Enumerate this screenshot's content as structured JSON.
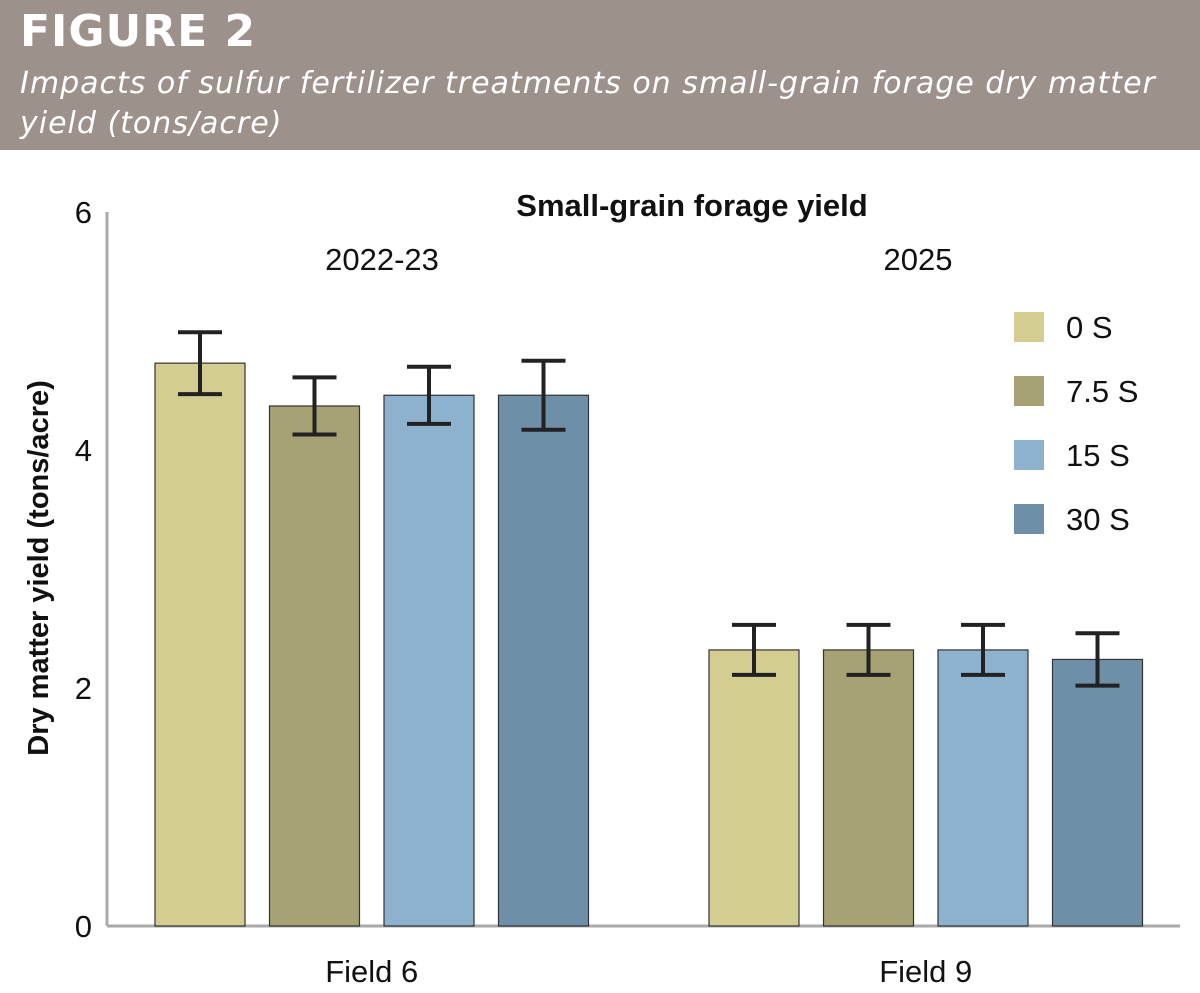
{
  "figure": {
    "label": "FIGURE 2",
    "caption": "Impacts of sulfur fertilizer treatments on small-grain forage dry matter yield (tons/acre)"
  },
  "colors": {
    "header_bg": "#9d918c",
    "axis": "#aaaaaa",
    "bar_outline": "#333333",
    "error_bar": "#222222"
  },
  "chart_data": {
    "type": "bar",
    "title": "Small-grain forage yield",
    "ylabel": "Dry matter yield (tons/acre)",
    "xlabel": "",
    "ylim": [
      0,
      6
    ],
    "yticks": [
      0,
      2,
      4,
      6
    ],
    "grid": false,
    "legend_position": "right",
    "categories": [
      "Field 6",
      "Field 9"
    ],
    "group_labels": [
      "2022-23",
      "2025"
    ],
    "series": [
      {
        "name": "0 S",
        "color": "#d3cd91",
        "values": [
          4.73,
          2.32
        ],
        "errors": [
          0.26,
          0.21
        ]
      },
      {
        "name": "7.5 S",
        "color": "#a6a274",
        "values": [
          4.37,
          2.32
        ],
        "errors": [
          0.24,
          0.21
        ]
      },
      {
        "name": "15 S",
        "color": "#8db2cd",
        "values": [
          4.46,
          2.32
        ],
        "errors": [
          0.24,
          0.21
        ]
      },
      {
        "name": "30 S",
        "color": "#6e8fa8",
        "values": [
          4.46,
          2.24
        ],
        "errors": [
          0.29,
          0.22
        ]
      }
    ]
  }
}
